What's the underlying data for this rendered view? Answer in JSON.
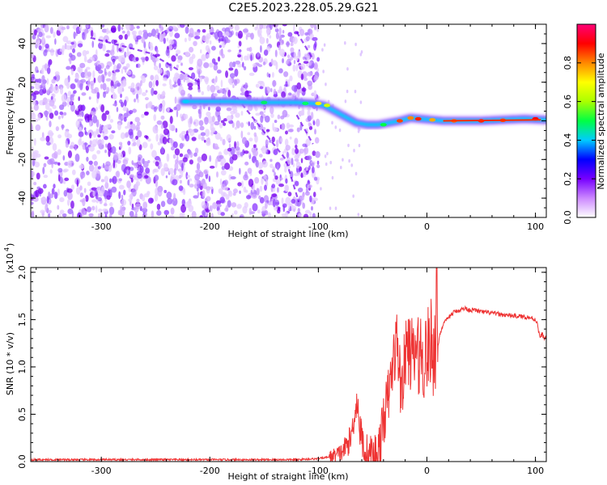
{
  "title": "C2E5.2023.228.05.29.G21",
  "chart_data": [
    {
      "type": "heatmap",
      "xlabel": "Height of straight line (km)",
      "ylabel": "Frequency (Hz)",
      "xlim": [
        -365,
        110
      ],
      "ylim": [
        -50,
        50
      ],
      "xticks": [
        -300,
        -200,
        -100,
        0,
        100
      ],
      "yticks": [
        -40,
        -20,
        0,
        20,
        40
      ],
      "colorbar": {
        "label": "Normalized spectral amplitude",
        "ticks": [
          "0.0",
          "0.2",
          "0.4",
          "0.6",
          "0.8"
        ],
        "range": [
          0,
          1
        ],
        "colors": [
          "#ffffff",
          "#cc88ff",
          "#7700ff",
          "#0000ff",
          "#00ccff",
          "#00ff44",
          "#aaff00",
          "#ffff00",
          "#ff8800",
          "#ff0000",
          "#ff0077"
        ]
      },
      "ridge": [
        {
          "x": -225,
          "y": 10
        },
        {
          "x": -200,
          "y": 10
        },
        {
          "x": -180,
          "y": 10
        },
        {
          "x": -160,
          "y": 9.5
        },
        {
          "x": -140,
          "y": 9.5
        },
        {
          "x": -120,
          "y": 9.5
        },
        {
          "x": -105,
          "y": 9
        },
        {
          "x": -95,
          "y": 8
        },
        {
          "x": -85,
          "y": 5
        },
        {
          "x": -75,
          "y": 2
        },
        {
          "x": -65,
          "y": -1
        },
        {
          "x": -55,
          "y": -2
        },
        {
          "x": -45,
          "y": -2
        },
        {
          "x": -35,
          "y": -1
        },
        {
          "x": -25,
          "y": 0
        },
        {
          "x": -15,
          "y": 1.5
        },
        {
          "x": -5,
          "y": 1
        },
        {
          "x": 5,
          "y": 0.5
        },
        {
          "x": 15,
          "y": 0
        },
        {
          "x": 30,
          "y": 0
        },
        {
          "x": 50,
          "y": 0
        },
        {
          "x": 70,
          "y": 0.5
        },
        {
          "x": 90,
          "y": 1
        },
        {
          "x": 110,
          "y": 0.5
        }
      ]
    },
    {
      "type": "line",
      "xlabel": "Height of straight line (km)",
      "ylabel": "SNR (10 * v/v)",
      "scale_label": "(x10",
      "scale_exp": "4",
      "xlim": [
        -365,
        110
      ],
      "ylim": [
        0,
        2.05
      ],
      "xticks": [
        -300,
        -200,
        -100,
        0,
        100
      ],
      "yticks": [
        "0.0",
        "0.5",
        "1.0",
        "1.5",
        "2.0"
      ],
      "color": "#ee3333",
      "series": [
        {
          "x": [
            -365,
            -300,
            -200,
            -120,
            -100,
            -90,
            -80,
            -75,
            -70,
            -66,
            -64,
            -62,
            -58,
            -55,
            -50,
            -45,
            -42,
            -40,
            -37,
            -34,
            -31,
            -28,
            -26,
            -24,
            -22,
            -20,
            -18,
            -16,
            -14,
            -12,
            -10,
            -8,
            -6,
            -4,
            -2,
            0,
            2,
            4,
            6,
            8,
            9,
            10,
            12,
            15,
            20,
            25,
            30,
            35,
            40,
            45,
            50,
            60,
            70,
            80,
            90,
            95,
            100,
            102,
            104,
            106,
            108,
            110
          ],
          "y": [
            0.02,
            0.02,
            0.02,
            0.02,
            0.03,
            0.05,
            0.08,
            0.15,
            0.25,
            0.55,
            0.65,
            0.35,
            0.15,
            0.08,
            0.05,
            0.1,
            0.25,
            0.45,
            0.6,
            0.8,
            1.05,
            1.3,
            1.1,
            0.75,
            0.9,
            1.05,
            1.3,
            1.1,
            1.2,
            1.0,
            1.25,
            1.1,
            1.2,
            1.05,
            1.1,
            1.2,
            1.15,
            1.3,
            1.15,
            1.25,
            2.05,
            1.2,
            1.35,
            1.45,
            1.52,
            1.58,
            1.6,
            1.62,
            1.6,
            1.6,
            1.58,
            1.57,
            1.55,
            1.54,
            1.53,
            1.52,
            1.5,
            1.45,
            1.3,
            1.35,
            1.3,
            1.32
          ]
        }
      ]
    }
  ]
}
